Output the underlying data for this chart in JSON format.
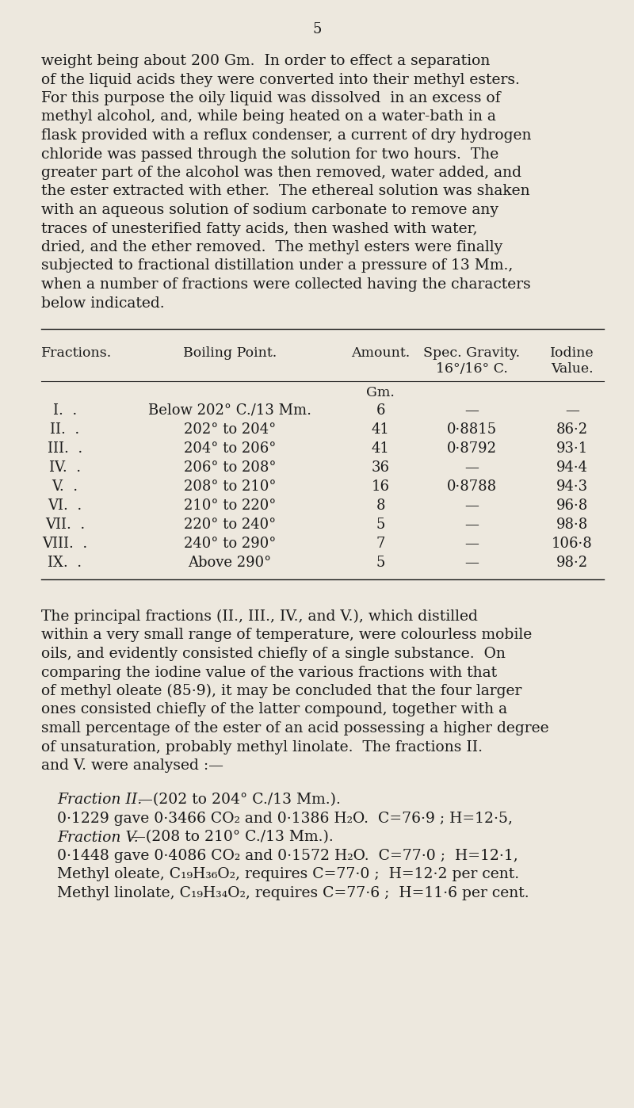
{
  "bg_color": "#ede8de",
  "text_color": "#1a1a1a",
  "page_number": "5",
  "body_text": [
    "weight being about 200 Gm.  In order to effect a separation",
    "of the liquid acids they were converted into their methyl esters.",
    "For this purpose the oily liquid was dissolved  in an excess of",
    "methyl alcohol, and, while being heated on a water-bath in a",
    "flask provided with a reflux condenser, a current of dry hydrogen",
    "chloride was passed through the solution for two hours.  The",
    "greater part of the alcohol was then removed, water added, and",
    "the ester extracted with ether.  The ethereal solution was shaken",
    "with an aqueous solution of sodium carbonate to remove any",
    "traces of unesterified fatty acids, then washed with water,",
    "dried, and the ether removed.  The methyl esters were finally",
    "subjected to fractional distillation under a pressure of 13 Mm.,",
    "when a number of fractions were collected having the characters",
    "below indicated."
  ],
  "table_rows": [
    [
      "I.  .",
      "Below 202° C./13 Mm.",
      "6",
      "—",
      "—"
    ],
    [
      "II.  .",
      "202° to 204°",
      "41",
      "0·8815",
      "86·2"
    ],
    [
      "III.  .",
      "204° to 206°",
      "41",
      "0·8792",
      "93·1"
    ],
    [
      "IV.  .",
      "206° to 208°",
      "36",
      "—",
      "94·4"
    ],
    [
      "V.  .",
      "208° to 210°",
      "16",
      "0·8788",
      "94·3"
    ],
    [
      "VI.  .",
      "210° to 220°",
      "8",
      "—",
      "96·8"
    ],
    [
      "VII.  .",
      "220° to 240°",
      "5",
      "—",
      "98·8"
    ],
    [
      "VIII.  .",
      "240° to 290°",
      "7",
      "—",
      "106·8"
    ],
    [
      "IX.  .",
      "Above 290°",
      "5",
      "—",
      "98·2"
    ]
  ],
  "body_text2": [
    "The principal fractions (II., III., IV., and V.), which distilled",
    "within a very small range of temperature, were colourless mobile",
    "oils, and evidently consisted chiefly of a single substance.  On",
    "comparing the iodine value of the various fractions with that",
    "of methyl oleate (85·9), it may be concluded that the four larger",
    "ones consisted chiefly of the latter compound, together with a",
    "small percentage of the ester of an acid possessing a higher degree",
    "of unsaturation, probably methyl linolate.  The fractions II.",
    "and V. were analysed :—"
  ]
}
